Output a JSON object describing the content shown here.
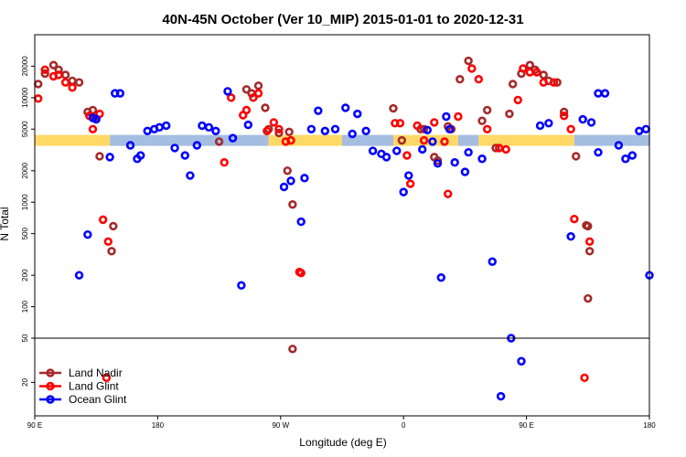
{
  "chart_data": {
    "type": "scatter",
    "title": "40N-45N October (Ver 10_MIP)   2015-01-01 to 2020-12-31",
    "xlabel": "Longitude (deg E)",
    "ylabel": "N Total",
    "x_range": [
      90,
      450
    ],
    "x_ticks": [
      {
        "v": 90,
        "label": "90 E"
      },
      {
        "v": 162,
        "label": "180"
      },
      {
        "v": 234,
        "label": "90 W"
      },
      {
        "v": 306,
        "label": "0"
      },
      {
        "v": 378,
        "label": "90 E"
      },
      {
        "v": 450,
        "label": "180"
      }
    ],
    "y_top_range": [
      50,
      40000
    ],
    "y_top_ticks": [
      {
        "v": 100,
        "label": "100"
      },
      {
        "v": 200,
        "label": "200"
      },
      {
        "v": 500,
        "label": "500"
      },
      {
        "v": 1000,
        "label": "1000"
      },
      {
        "v": 2000,
        "label": "2000"
      },
      {
        "v": 5000,
        "label": "5000"
      },
      {
        "v": 10000,
        "label": "10000"
      },
      {
        "v": 20000,
        "label": "20000"
      }
    ],
    "y_bottom_range": [
      10,
      50
    ],
    "y_bottom_ticks": [
      {
        "v": 50,
        "label": "50"
      },
      {
        "v": 20,
        "label": "20"
      }
    ],
    "colors": {
      "land_nadir": "#a52a2a",
      "land_glint": "#ff0000",
      "ocean_glint": "#0000ff",
      "latitude_band_land": "#ffd966",
      "latitude_band_ocean": "#a4bde0"
    },
    "series": [
      {
        "name": "Land Nadir",
        "key": "land_nadir",
        "points": [
          [
            92,
            13500
          ],
          [
            96,
            17000
          ],
          [
            101,
            20500
          ],
          [
            104,
            18500
          ],
          [
            108,
            16500
          ],
          [
            112,
            14500
          ],
          [
            116,
            14000
          ],
          [
            121,
            7300
          ],
          [
            124,
            7600
          ],
          [
            125,
            6400
          ],
          [
            128,
            2750
          ],
          [
            136,
            590
          ],
          [
            135,
            340
          ],
          [
            198,
            3800
          ],
          [
            214,
            12000
          ],
          [
            217,
            11000
          ],
          [
            221,
            13000
          ],
          [
            225,
            8000
          ],
          [
            227,
            5000
          ],
          [
            233,
            4600
          ],
          [
            239,
            4700
          ],
          [
            238,
            2000
          ],
          [
            241,
            950
          ],
          [
            241,
            40
          ],
          [
            300,
            7900
          ],
          [
            305,
            3900
          ],
          [
            316,
            5000
          ],
          [
            318,
            5000
          ],
          [
            324,
            2700
          ],
          [
            326,
            2500
          ],
          [
            332,
            5300
          ],
          [
            334,
            5000
          ],
          [
            339,
            15000
          ],
          [
            344,
            22500
          ],
          [
            352,
            6000
          ],
          [
            355,
            7600
          ],
          [
            360,
            3300
          ],
          [
            368,
            7000
          ],
          [
            370,
            13500
          ],
          [
            375,
            17000
          ],
          [
            380,
            20500
          ],
          [
            383,
            18500
          ],
          [
            388,
            16500
          ],
          [
            391,
            14500
          ],
          [
            396,
            14000
          ],
          [
            400,
            7300
          ],
          [
            407,
            2750
          ],
          [
            414,
            120
          ],
          [
            415,
            340
          ],
          [
            414,
            590
          ],
          [
            413,
            600
          ]
        ]
      },
      {
        "name": "Land Glint",
        "key": "land_glint",
        "points": [
          [
            92,
            9800
          ],
          [
            96,
            18500
          ],
          [
            101,
            16000
          ],
          [
            104,
            16500
          ],
          [
            108,
            14000
          ],
          [
            112,
            12500
          ],
          [
            122,
            6700
          ],
          [
            124,
            5000
          ],
          [
            128,
            7000
          ],
          [
            130,
            680
          ],
          [
            132,
            22
          ],
          [
            133,
            420
          ],
          [
            201,
            2400
          ],
          [
            205,
            10000
          ],
          [
            212,
            6800
          ],
          [
            214,
            7600
          ],
          [
            218,
            10000
          ],
          [
            221,
            11000
          ],
          [
            226,
            4800
          ],
          [
            230,
            5800
          ],
          [
            233,
            5000
          ],
          [
            237,
            3800
          ],
          [
            240,
            3900
          ],
          [
            245,
            215
          ],
          [
            246,
            210
          ],
          [
            301,
            5700
          ],
          [
            304,
            5700
          ],
          [
            308,
            2800
          ],
          [
            310,
            1500
          ],
          [
            314,
            5400
          ],
          [
            318,
            3900
          ],
          [
            324,
            5800
          ],
          [
            330,
            3800
          ],
          [
            332,
            1200
          ],
          [
            338,
            6600
          ],
          [
            346,
            19000
          ],
          [
            350,
            15000
          ],
          [
            355,
            5000
          ],
          [
            362,
            3300
          ],
          [
            366,
            3200
          ],
          [
            373,
            9500
          ],
          [
            376,
            19000
          ],
          [
            380,
            17500
          ],
          [
            384,
            17500
          ],
          [
            388,
            14000
          ],
          [
            394,
            14000
          ],
          [
            400,
            6700
          ],
          [
            404,
            5000
          ],
          [
            406,
            690
          ],
          [
            412,
            22
          ],
          [
            415,
            420
          ]
        ]
      },
      {
        "name": "Ocean Glint",
        "key": "ocean_glint",
        "points": [
          [
            116,
            200
          ],
          [
            121,
            490
          ],
          [
            124,
            6400
          ],
          [
            126,
            6200
          ],
          [
            134,
            2700
          ],
          [
            137,
            11000
          ],
          [
            140,
            11000
          ],
          [
            146,
            3500
          ],
          [
            150,
            2600
          ],
          [
            152,
            2800
          ],
          [
            156,
            4800
          ],
          [
            160,
            5000
          ],
          [
            163,
            5200
          ],
          [
            167,
            5400
          ],
          [
            172,
            3300
          ],
          [
            178,
            2800
          ],
          [
            181,
            1800
          ],
          [
            185,
            3500
          ],
          [
            188,
            5400
          ],
          [
            192,
            5200
          ],
          [
            196,
            4800
          ],
          [
            203,
            11500
          ],
          [
            206,
            4100
          ],
          [
            211,
            160
          ],
          [
            215,
            5500
          ],
          [
            236,
            1400
          ],
          [
            240,
            1600
          ],
          [
            246,
            650
          ],
          [
            248,
            1700
          ],
          [
            252,
            5000
          ],
          [
            256,
            7500
          ],
          [
            260,
            4800
          ],
          [
            266,
            5000
          ],
          [
            272,
            8000
          ],
          [
            276,
            4500
          ],
          [
            279,
            7000
          ],
          [
            284,
            4800
          ],
          [
            288,
            3100
          ],
          [
            293,
            2900
          ],
          [
            296,
            2700
          ],
          [
            302,
            3100
          ],
          [
            306,
            1250
          ],
          [
            309,
            1800
          ],
          [
            317,
            3200
          ],
          [
            320,
            4900
          ],
          [
            323,
            3800
          ],
          [
            326,
            2350
          ],
          [
            328,
            190
          ],
          [
            331,
            6600
          ],
          [
            333,
            5000
          ],
          [
            336,
            2400
          ],
          [
            342,
            1950
          ],
          [
            344,
            3000
          ],
          [
            352,
            2600
          ],
          [
            358,
            270
          ],
          [
            363,
            15
          ],
          [
            369,
            50
          ],
          [
            375,
            31
          ],
          [
            386,
            5400
          ],
          [
            391,
            5700
          ],
          [
            404,
            470
          ],
          [
            411,
            6200
          ],
          [
            416,
            5800
          ],
          [
            420,
            3000
          ],
          [
            420,
            11000
          ],
          [
            424,
            11000
          ],
          [
            432,
            3500
          ],
          [
            436,
            2600
          ],
          [
            440,
            2800
          ],
          [
            444,
            4800
          ],
          [
            448,
            5000
          ],
          [
            452,
            200
          ]
        ]
      }
    ],
    "legend": [
      {
        "key": "land_nadir",
        "label": "Land Nadir"
      },
      {
        "key": "land_glint",
        "label": "Land Glint"
      },
      {
        "key": "ocean_glint",
        "label": "Ocean Glint"
      }
    ],
    "latitude_band_segments": [
      {
        "from": 90,
        "to": 134,
        "kind": "land"
      },
      {
        "from": 134,
        "to": 227,
        "kind": "ocean"
      },
      {
        "from": 227,
        "to": 270,
        "kind": "land"
      },
      {
        "from": 270,
        "to": 300,
        "kind": "ocean"
      },
      {
        "from": 300,
        "to": 338,
        "kind": "land"
      },
      {
        "from": 338,
        "to": 350,
        "kind": "ocean"
      },
      {
        "from": 350,
        "to": 406,
        "kind": "land"
      },
      {
        "from": 406,
        "to": 450,
        "kind": "ocean"
      }
    ],
    "latitude_band_level": 3900
  }
}
